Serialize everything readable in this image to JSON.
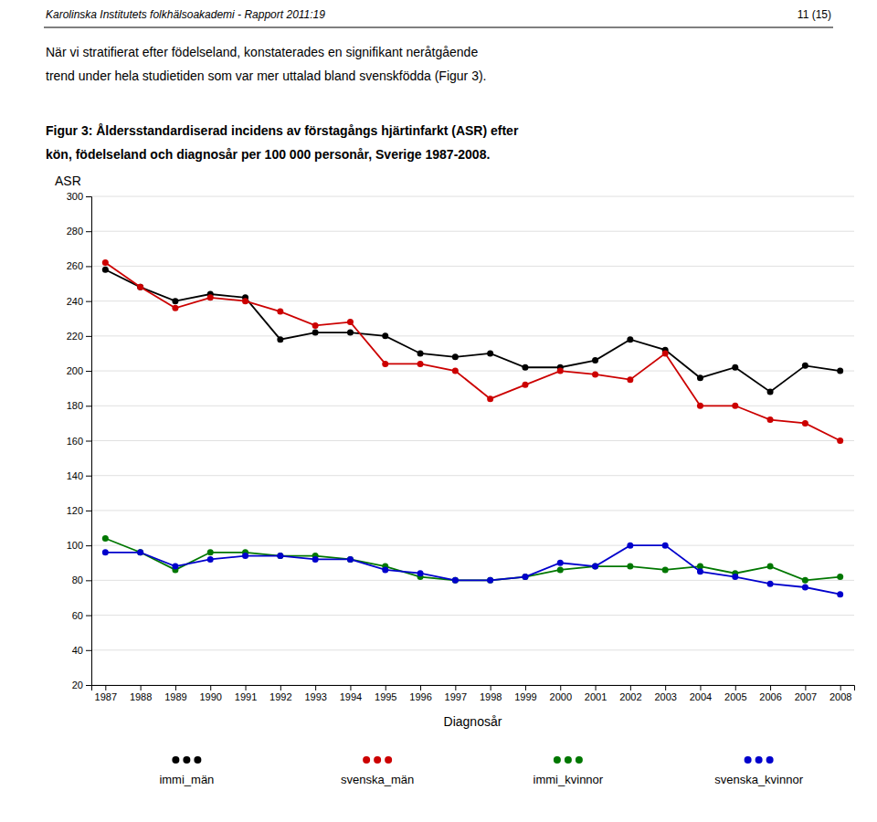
{
  "chart_data": {
    "type": "line",
    "annotations": [
      "Karolinska Institutets folkhälsoakademi - Rapport 2011:19",
      "11 (15)",
      "När vi stratifierat efter födelseland, konstaterades en signifikant neråtgående",
      "trend under hela studietiden som var mer uttalad bland svenskfödda (Figur 3)."
    ],
    "title": [
      "Figur 3: Åldersstandardiserad incidens av förstagångs hjärtinfarkt (ASR) efter",
      "kön, födelseland och diagnosår per 100 000 personår, Sverige 1987-2008."
    ],
    "x_label": "Diagnosår",
    "y_label": "ASR",
    "x": [
      1987,
      1988,
      1989,
      1990,
      1991,
      1992,
      1993,
      1994,
      1995,
      1996,
      1997,
      1998,
      1999,
      2000,
      2001,
      2002,
      2003,
      2004,
      2005,
      2006,
      2007,
      2008
    ],
    "series": [
      {
        "name": "immi_män",
        "color": "#000000",
        "values": [
          258,
          248,
          240,
          244,
          242,
          218,
          222,
          222,
          220,
          210,
          208,
          210,
          202,
          202,
          206,
          218,
          212,
          196,
          202,
          188,
          203,
          200
        ]
      },
      {
        "name": "svenska_män",
        "color": "#cc0000",
        "values": [
          262,
          248,
          236,
          242,
          240,
          234,
          226,
          228,
          204,
          204,
          200,
          184,
          192,
          200,
          198,
          195,
          210,
          180,
          180,
          172,
          170,
          160
        ]
      },
      {
        "name": "immi_kvinnor",
        "color": "#007700",
        "values": [
          104,
          96,
          86,
          96,
          96,
          94,
          94,
          92,
          88,
          82,
          80,
          80,
          82,
          86,
          88,
          88,
          86,
          88,
          84,
          88,
          80,
          82
        ]
      },
      {
        "name": "svenska_kvinnor",
        "color": "#0000cc",
        "values": [
          96,
          96,
          88,
          92,
          94,
          94,
          92,
          92,
          86,
          84,
          80,
          80,
          82,
          90,
          88,
          100,
          100,
          85,
          82,
          78,
          76,
          72
        ]
      }
    ],
    "xlim": [
      1986.6,
      2008.4
    ],
    "xticks": [
      1987,
      1988,
      1989,
      1990,
      1991,
      1992,
      1993,
      1994,
      1995,
      1996,
      1997,
      1998,
      1999,
      2000,
      2001,
      2002,
      2003,
      2004,
      2005,
      2006,
      2007,
      2008
    ],
    "ylim": [
      20,
      300
    ],
    "yticks": [
      20,
      40,
      60,
      80,
      100,
      120,
      140,
      160,
      180,
      200,
      220,
      240,
      260,
      280,
      300
    ],
    "grid": true,
    "marker": "circle",
    "line_style": "solid",
    "legend": "bottom"
  }
}
